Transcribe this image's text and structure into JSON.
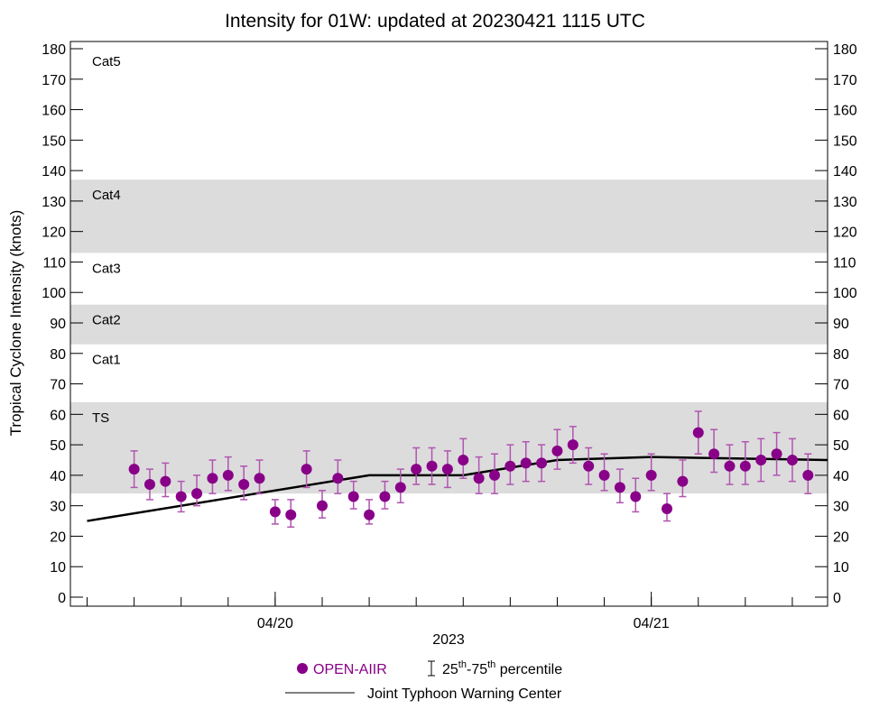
{
  "chart_data": {
    "type": "scatter",
    "title": "Intensity for 01W: updated at 20230421 1115 UTC",
    "ylabel": "Tropical Cyclone Intensity (knots)",
    "xlabel": "2023",
    "ylim": [
      0,
      180
    ],
    "yticks": [
      0,
      10,
      20,
      30,
      40,
      50,
      60,
      70,
      80,
      90,
      100,
      110,
      120,
      130,
      140,
      150,
      160,
      170,
      180
    ],
    "xlim": [
      "2023-04-19 10:56",
      "2023-04-21 11:15"
    ],
    "xtick_labels": [
      {
        "label": "04/20",
        "time": "2023-04-20 00:00"
      },
      {
        "label": "04/21",
        "time": "2023-04-21 00:00"
      }
    ],
    "minor_tick_interval_hours": 3,
    "grid": false,
    "legend_position": "bottom",
    "category_bands": [
      {
        "label": "TS",
        "range": [
          34,
          64
        ],
        "shaded": true
      },
      {
        "label": "Cat1",
        "range": [
          64,
          83
        ],
        "shaded": false
      },
      {
        "label": "Cat2",
        "range": [
          83,
          96
        ],
        "shaded": true
      },
      {
        "label": "Cat3",
        "range": [
          96,
          113
        ],
        "shaded": false
      },
      {
        "label": "Cat4",
        "range": [
          113,
          137
        ],
        "shaded": true
      },
      {
        "label": "Cat5",
        "range": [
          137,
          180
        ],
        "shaded": false
      }
    ],
    "colors": {
      "open_aiir": "#880088",
      "errorbar": "#b055b0",
      "jtwc": "#000000",
      "band": "#dcdcdc"
    },
    "series": [
      {
        "name": "OPEN-AIIR",
        "type": "scatter-errorbar",
        "start": "2023-04-19 15:00",
        "interval_hours": 1,
        "values": [
          42,
          37,
          38,
          33,
          34,
          39,
          40,
          37,
          39,
          28,
          27,
          42,
          30,
          39,
          33,
          27,
          33,
          36,
          42,
          43,
          42,
          45,
          39,
          40,
          43,
          44,
          44,
          48,
          50,
          43,
          40,
          36,
          33,
          40,
          29,
          38,
          54,
          47,
          43,
          43,
          45,
          47,
          45,
          40
        ],
        "p25": [
          36,
          32,
          33,
          28,
          30,
          34,
          35,
          32,
          34,
          24,
          23,
          36,
          26,
          34,
          29,
          24,
          29,
          31,
          37,
          37,
          36,
          39,
          34,
          34,
          37,
          38,
          38,
          42,
          44,
          37,
          35,
          31,
          28,
          35,
          25,
          33,
          47,
          41,
          37,
          37,
          38,
          40,
          38,
          34
        ],
        "p75": [
          48,
          42,
          44,
          38,
          40,
          45,
          46,
          43,
          45,
          32,
          32,
          48,
          35,
          45,
          38,
          32,
          38,
          42,
          49,
          49,
          48,
          52,
          46,
          47,
          50,
          51,
          50,
          55,
          56,
          49,
          47,
          42,
          39,
          47,
          34,
          45,
          61,
          55,
          50,
          51,
          52,
          54,
          52,
          47
        ]
      },
      {
        "name": "Joint Typhoon Warning Center",
        "type": "line",
        "points": [
          {
            "time": "2023-04-19 12:00",
            "value": 25
          },
          {
            "time": "2023-04-20 06:00",
            "value": 40
          },
          {
            "time": "2023-04-20 12:00",
            "value": 40
          },
          {
            "time": "2023-04-20 18:00",
            "value": 45
          },
          {
            "time": "2023-04-21 00:00",
            "value": 46
          },
          {
            "time": "2023-04-21 11:15",
            "value": 45
          }
        ]
      }
    ],
    "legend": {
      "open_aiir": "OPEN-AIIR",
      "percentile_prefix": "25",
      "percentile_sup1": "th",
      "percentile_mid": "-75",
      "percentile_sup2": "th",
      "percentile_suffix": " percentile",
      "jtwc": "Joint Typhoon Warning Center"
    }
  }
}
